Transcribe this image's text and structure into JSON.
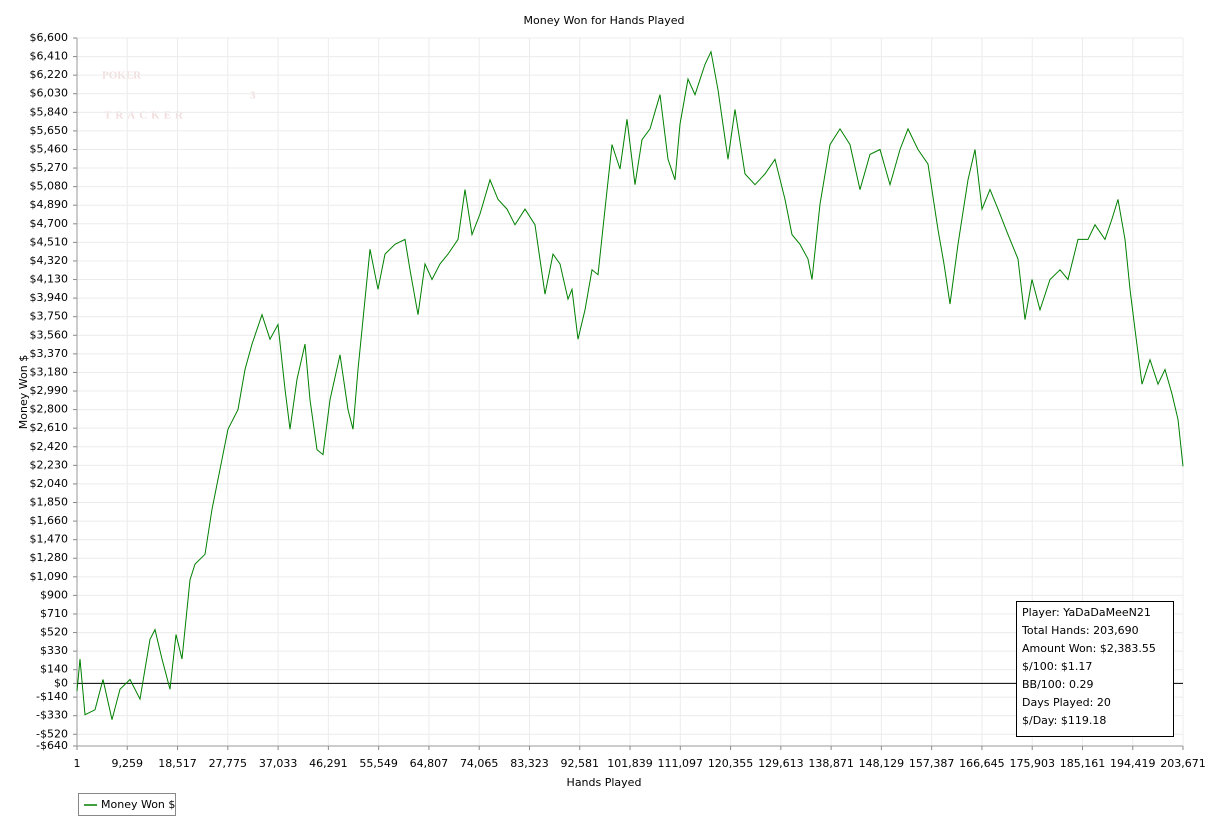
{
  "chart_data": {
    "type": "line",
    "title": "Money Won for Hands Played",
    "x_label": "Hands Played",
    "y_label": "Money Won $",
    "watermark": [
      "POKER",
      "TRACKER",
      "3"
    ],
    "grid": true,
    "zero_line": true,
    "legend": "bottom-left",
    "xlim": [
      1,
      203671
    ],
    "ylim": [
      -640,
      6600
    ],
    "xticks": [
      1,
      {
        "value": 9259,
        "label": "9,259"
      },
      {
        "value": 18517,
        "label": "18,517"
      },
      {
        "value": 27775,
        "label": "27,775"
      },
      {
        "value": 37033,
        "label": "37,033"
      },
      {
        "value": 46291,
        "label": "46,291"
      },
      {
        "value": 55549,
        "label": "55,549"
      },
      {
        "value": 64807,
        "label": "64,807"
      },
      {
        "value": 74065,
        "label": "74,065"
      },
      {
        "value": 83323,
        "label": "83,323"
      },
      {
        "value": 92581,
        "label": "92,581"
      },
      {
        "value": 101839,
        "label": "101,839"
      },
      {
        "value": 111097,
        "label": "111,097"
      },
      {
        "value": 120355,
        "label": "120,355"
      },
      {
        "value": 129613,
        "label": "129,613"
      },
      {
        "value": 138871,
        "label": "138,871"
      },
      {
        "value": 148129,
        "label": "148,129"
      },
      {
        "value": 157387,
        "label": "157,387"
      },
      {
        "value": 166645,
        "label": "166,645"
      },
      {
        "value": 175903,
        "label": "175,903"
      },
      {
        "value": 185161,
        "label": "185,161"
      },
      {
        "value": 194419,
        "label": "194,419"
      },
      {
        "value": 203671,
        "label": "203,671"
      }
    ],
    "yticks": [
      {
        "value": 6600,
        "label": "$6,600"
      },
      {
        "value": 6410,
        "label": "$6,410"
      },
      {
        "value": 6220,
        "label": "$6,220"
      },
      {
        "value": 6030,
        "label": "$6,030"
      },
      {
        "value": 5840,
        "label": "$5,840"
      },
      {
        "value": 5650,
        "label": "$5,650"
      },
      {
        "value": 5460,
        "label": "$5,460"
      },
      {
        "value": 5270,
        "label": "$5,270"
      },
      {
        "value": 5080,
        "label": "$5,080"
      },
      {
        "value": 4890,
        "label": "$4,890"
      },
      {
        "value": 4700,
        "label": "$4,700"
      },
      {
        "value": 4510,
        "label": "$4,510"
      },
      {
        "value": 4320,
        "label": "$4,320"
      },
      {
        "value": 4130,
        "label": "$4,130"
      },
      {
        "value": 3940,
        "label": "$3,940"
      },
      {
        "value": 3750,
        "label": "$3,750"
      },
      {
        "value": 3560,
        "label": "$3,560"
      },
      {
        "value": 3370,
        "label": "$3,370"
      },
      {
        "value": 3180,
        "label": "$3,180"
      },
      {
        "value": 2990,
        "label": "$2,990"
      },
      {
        "value": 2800,
        "label": "$2,800"
      },
      {
        "value": 2610,
        "label": "$2,610"
      },
      {
        "value": 2420,
        "label": "$2,420"
      },
      {
        "value": 2230,
        "label": "$2,230"
      },
      {
        "value": 2040,
        "label": "$2,040"
      },
      {
        "value": 1850,
        "label": "$1,850"
      },
      {
        "value": 1660,
        "label": "$1,660"
      },
      {
        "value": 1470,
        "label": "$1,470"
      },
      {
        "value": 1280,
        "label": "$1,280"
      },
      {
        "value": 1090,
        "label": "$1,090"
      },
      {
        "value": 900,
        "label": "$900"
      },
      {
        "value": 710,
        "label": "$710"
      },
      {
        "value": 520,
        "label": "$520"
      },
      {
        "value": 330,
        "label": "$330"
      },
      {
        "value": 140,
        "label": "$140"
      },
      {
        "value": 0,
        "label": "$0"
      },
      {
        "value": -140,
        "label": "-$140"
      },
      {
        "value": -330,
        "label": "-$330"
      },
      {
        "value": -520,
        "label": "-$520"
      },
      {
        "value": -640,
        "label": "-$640"
      }
    ],
    "x": [
      1,
      553,
      1474,
      3315,
      4788,
      6446,
      7919,
      9760,
      11602,
      13443,
      14364,
      15653,
      17126,
      18231,
      19336,
      20809,
      21730,
      23571,
      24860,
      26333,
      27807,
      29648,
      30937,
      32227,
      34068,
      35541,
      37015,
      38304,
      39225,
      40514,
      41987,
      42908,
      44197,
      45302,
      46591,
      48432,
      49906,
      50826,
      51747,
      52668,
      53957,
      55430,
      56719,
      58561,
      60402,
      61323,
      62796,
      64085,
      65374,
      66847,
      68321,
      70162,
      71451,
      72740,
      74213,
      76055,
      77528,
      79185,
      80659,
      82500,
      84342,
      86183,
      87656,
      88945,
      90419,
      91155,
      92260,
      93549,
      94838,
      95943,
      97232,
      98521,
      99994,
      101284,
      102757,
      104046,
      105519,
      107360,
      108834,
      110123,
      111043,
      112517,
      113806,
      115647,
      116752,
      118041,
      119883,
      121172,
      123013,
      124855,
      126696,
      128538,
      130379,
      131668,
      133141,
      134615,
      135351,
      136824,
      138666,
      140507,
      142349,
      144190,
      146032,
      147873,
      149715,
      151556,
      153030,
      154871,
      156713,
      158554,
      159659,
      160764,
      162237,
      164079,
      165368,
      166657,
      168130,
      169603,
      171445,
      173286,
      174575,
      175864,
      177337,
      179179,
      181020,
      182494,
      184335,
      186177,
      187466,
      189307,
      190596,
      191701,
      192990,
      193911,
      194832,
      196121,
      197594,
      199067,
      200356,
      201645,
      202750,
      203671
    ],
    "series": [
      {
        "name": "Money Won $",
        "color": "#008000",
        "values": [
          -80,
          250,
          -320,
          -270,
          40,
          -370,
          -60,
          40,
          -160,
          450,
          550,
          250,
          -60,
          500,
          250,
          1060,
          1220,
          1320,
          1780,
          2190,
          2600,
          2800,
          3210,
          3470,
          3770,
          3520,
          3670,
          3010,
          2600,
          3110,
          3470,
          2900,
          2390,
          2340,
          2900,
          3360,
          2800,
          2600,
          3210,
          3720,
          4440,
          4030,
          4390,
          4490,
          4540,
          4230,
          3770,
          4290,
          4130,
          4290,
          4390,
          4540,
          5050,
          4590,
          4800,
          5150,
          4950,
          4850,
          4690,
          4850,
          4690,
          3980,
          4390,
          4290,
          3930,
          4030,
          3520,
          3820,
          4230,
          4180,
          4850,
          5510,
          5260,
          5770,
          5100,
          5560,
          5670,
          6020,
          5360,
          5150,
          5720,
          6180,
          6020,
          6330,
          6460,
          6070,
          5360,
          5870,
          5210,
          5100,
          5210,
          5360,
          4950,
          4590,
          4490,
          4340,
          4130,
          4900,
          5510,
          5670,
          5510,
          5050,
          5410,
          5460,
          5100,
          5460,
          5670,
          5460,
          5310,
          4640,
          4290,
          3880,
          4490,
          5150,
          5460,
          4850,
          5050,
          4850,
          4590,
          4340,
          3720,
          4130,
          3820,
          4130,
          4230,
          4130,
          4540,
          4540,
          4690,
          4540,
          4750,
          4950,
          4540,
          4030,
          3620,
          3060,
          3310,
          3060,
          3210,
          2960,
          2700,
          2220
        ]
      }
    ],
    "info_box": [
      "Player: YaDaDaMeeN21",
      "Total Hands: 203,690",
      "Amount Won: $2,383.55",
      "$/100: $1.17",
      "BB/100: 0.29",
      "Days Played: 20",
      "$/Day: $119.18"
    ]
  }
}
